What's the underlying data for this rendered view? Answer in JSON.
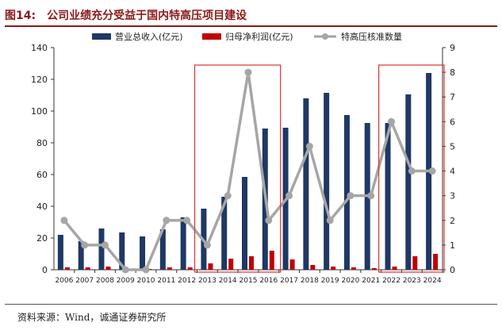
{
  "figure": {
    "label": "图14:",
    "title": "公司业绩充分受益于国内特高压项目建设",
    "source": "资料来源：Wind，诚通证券研究所"
  },
  "colors": {
    "revenue": "#1f3864",
    "profit": "#c00000",
    "line": "#a6a6a6",
    "highlight": "#e03030",
    "title": "#8b1a1a"
  },
  "chart_data": {
    "type": "bar",
    "categories": [
      "2006",
      "2007",
      "2008",
      "2009",
      "2010",
      "2011",
      "2012",
      "2013",
      "2014",
      "2015",
      "2016",
      "2017",
      "2018",
      "2019",
      "2020",
      "2021",
      "2022",
      "2023",
      "2024"
    ],
    "series": [
      {
        "name": "营业总收入(亿元)",
        "type": "bar",
        "axis": "left",
        "values": [
          22,
          18,
          26,
          23.5,
          21,
          25.5,
          33,
          38.5,
          46,
          58.5,
          89,
          89.5,
          108,
          111.5,
          97.5,
          92.5,
          92.5,
          110.5,
          124
        ]
      },
      {
        "name": "归母净利润(亿元)",
        "type": "bar",
        "axis": "left",
        "values": [
          1.5,
          1.5,
          2,
          0.5,
          0.5,
          1.5,
          1.5,
          4,
          7,
          8.5,
          12,
          6.5,
          3,
          2,
          1.5,
          1,
          2,
          8.5,
          10
        ]
      },
      {
        "name": "特高压核准数量",
        "type": "line",
        "axis": "right",
        "values": [
          2,
          1,
          1,
          0,
          0,
          2,
          2,
          1,
          3,
          8,
          2,
          3,
          5,
          2,
          3,
          3,
          6,
          4,
          4
        ]
      }
    ],
    "left_axis": {
      "ylim": [
        0,
        140
      ],
      "ticks": [
        0,
        20,
        40,
        60,
        80,
        100,
        120,
        140
      ]
    },
    "right_axis": {
      "ylim": [
        0,
        9
      ],
      "ticks": [
        0,
        1,
        2,
        3,
        4,
        5,
        6,
        7,
        8,
        9
      ]
    },
    "highlights": [
      {
        "from": "2013",
        "to": "2016"
      },
      {
        "from": "2022",
        "to": "2024"
      }
    ],
    "legend_position": "top-center",
    "grid": false
  }
}
